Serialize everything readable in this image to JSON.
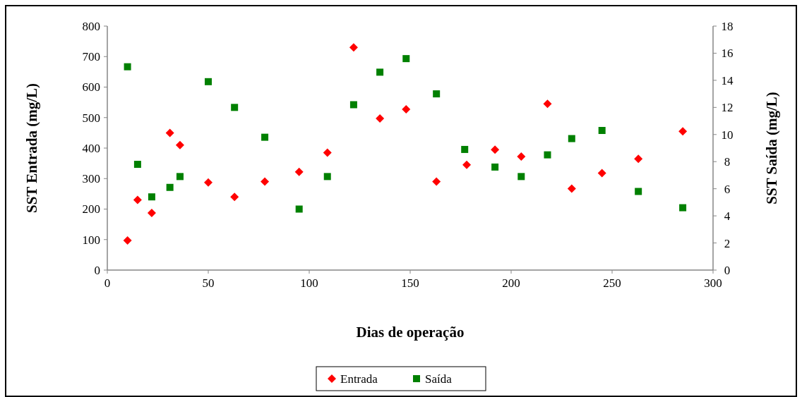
{
  "chart_data": {
    "type": "scatter",
    "xlabel": "Dias de operação",
    "ylabel": "SST Entrada (mg/L)",
    "y2label": "SST Saída (mg/L)",
    "xlim": [
      0,
      300
    ],
    "xticks": [
      0,
      50,
      100,
      150,
      200,
      250,
      300
    ],
    "ylim": [
      0,
      800
    ],
    "yticks": [
      0,
      100,
      200,
      300,
      400,
      500,
      600,
      700,
      800
    ],
    "y2lim": [
      0,
      18
    ],
    "y2ticks": [
      0,
      2,
      4,
      6,
      8,
      10,
      12,
      14,
      16,
      18
    ],
    "legend": "bottom",
    "grid": false,
    "series": [
      {
        "name": "Entrada",
        "color": "#ff0000",
        "marker": "diamond",
        "x": [
          10,
          15,
          22,
          31,
          36,
          50,
          63,
          78,
          95,
          109,
          122,
          135,
          148,
          163,
          178,
          192,
          205,
          218,
          230,
          245,
          263,
          285
        ],
        "values": [
          97,
          230,
          187,
          450,
          410,
          287,
          240,
          290,
          322,
          385,
          730,
          497,
          527,
          290,
          345,
          395,
          372,
          545,
          267,
          318,
          365,
          455
        ]
      },
      {
        "name": "Saída",
        "color": "#008000",
        "marker": "square",
        "axis": "y2",
        "x": [
          10,
          15,
          22,
          31,
          36,
          50,
          63,
          78,
          95,
          109,
          122,
          135,
          148,
          163,
          177,
          192,
          205,
          218,
          230,
          245,
          263,
          285
        ],
        "values": [
          15.0,
          7.8,
          5.4,
          6.1,
          6.9,
          13.9,
          12.0,
          9.8,
          4.5,
          6.9,
          12.2,
          14.6,
          15.6,
          13.0,
          8.9,
          7.6,
          6.9,
          8.5,
          9.7,
          10.3,
          5.8,
          4.6
        ]
      }
    ]
  }
}
